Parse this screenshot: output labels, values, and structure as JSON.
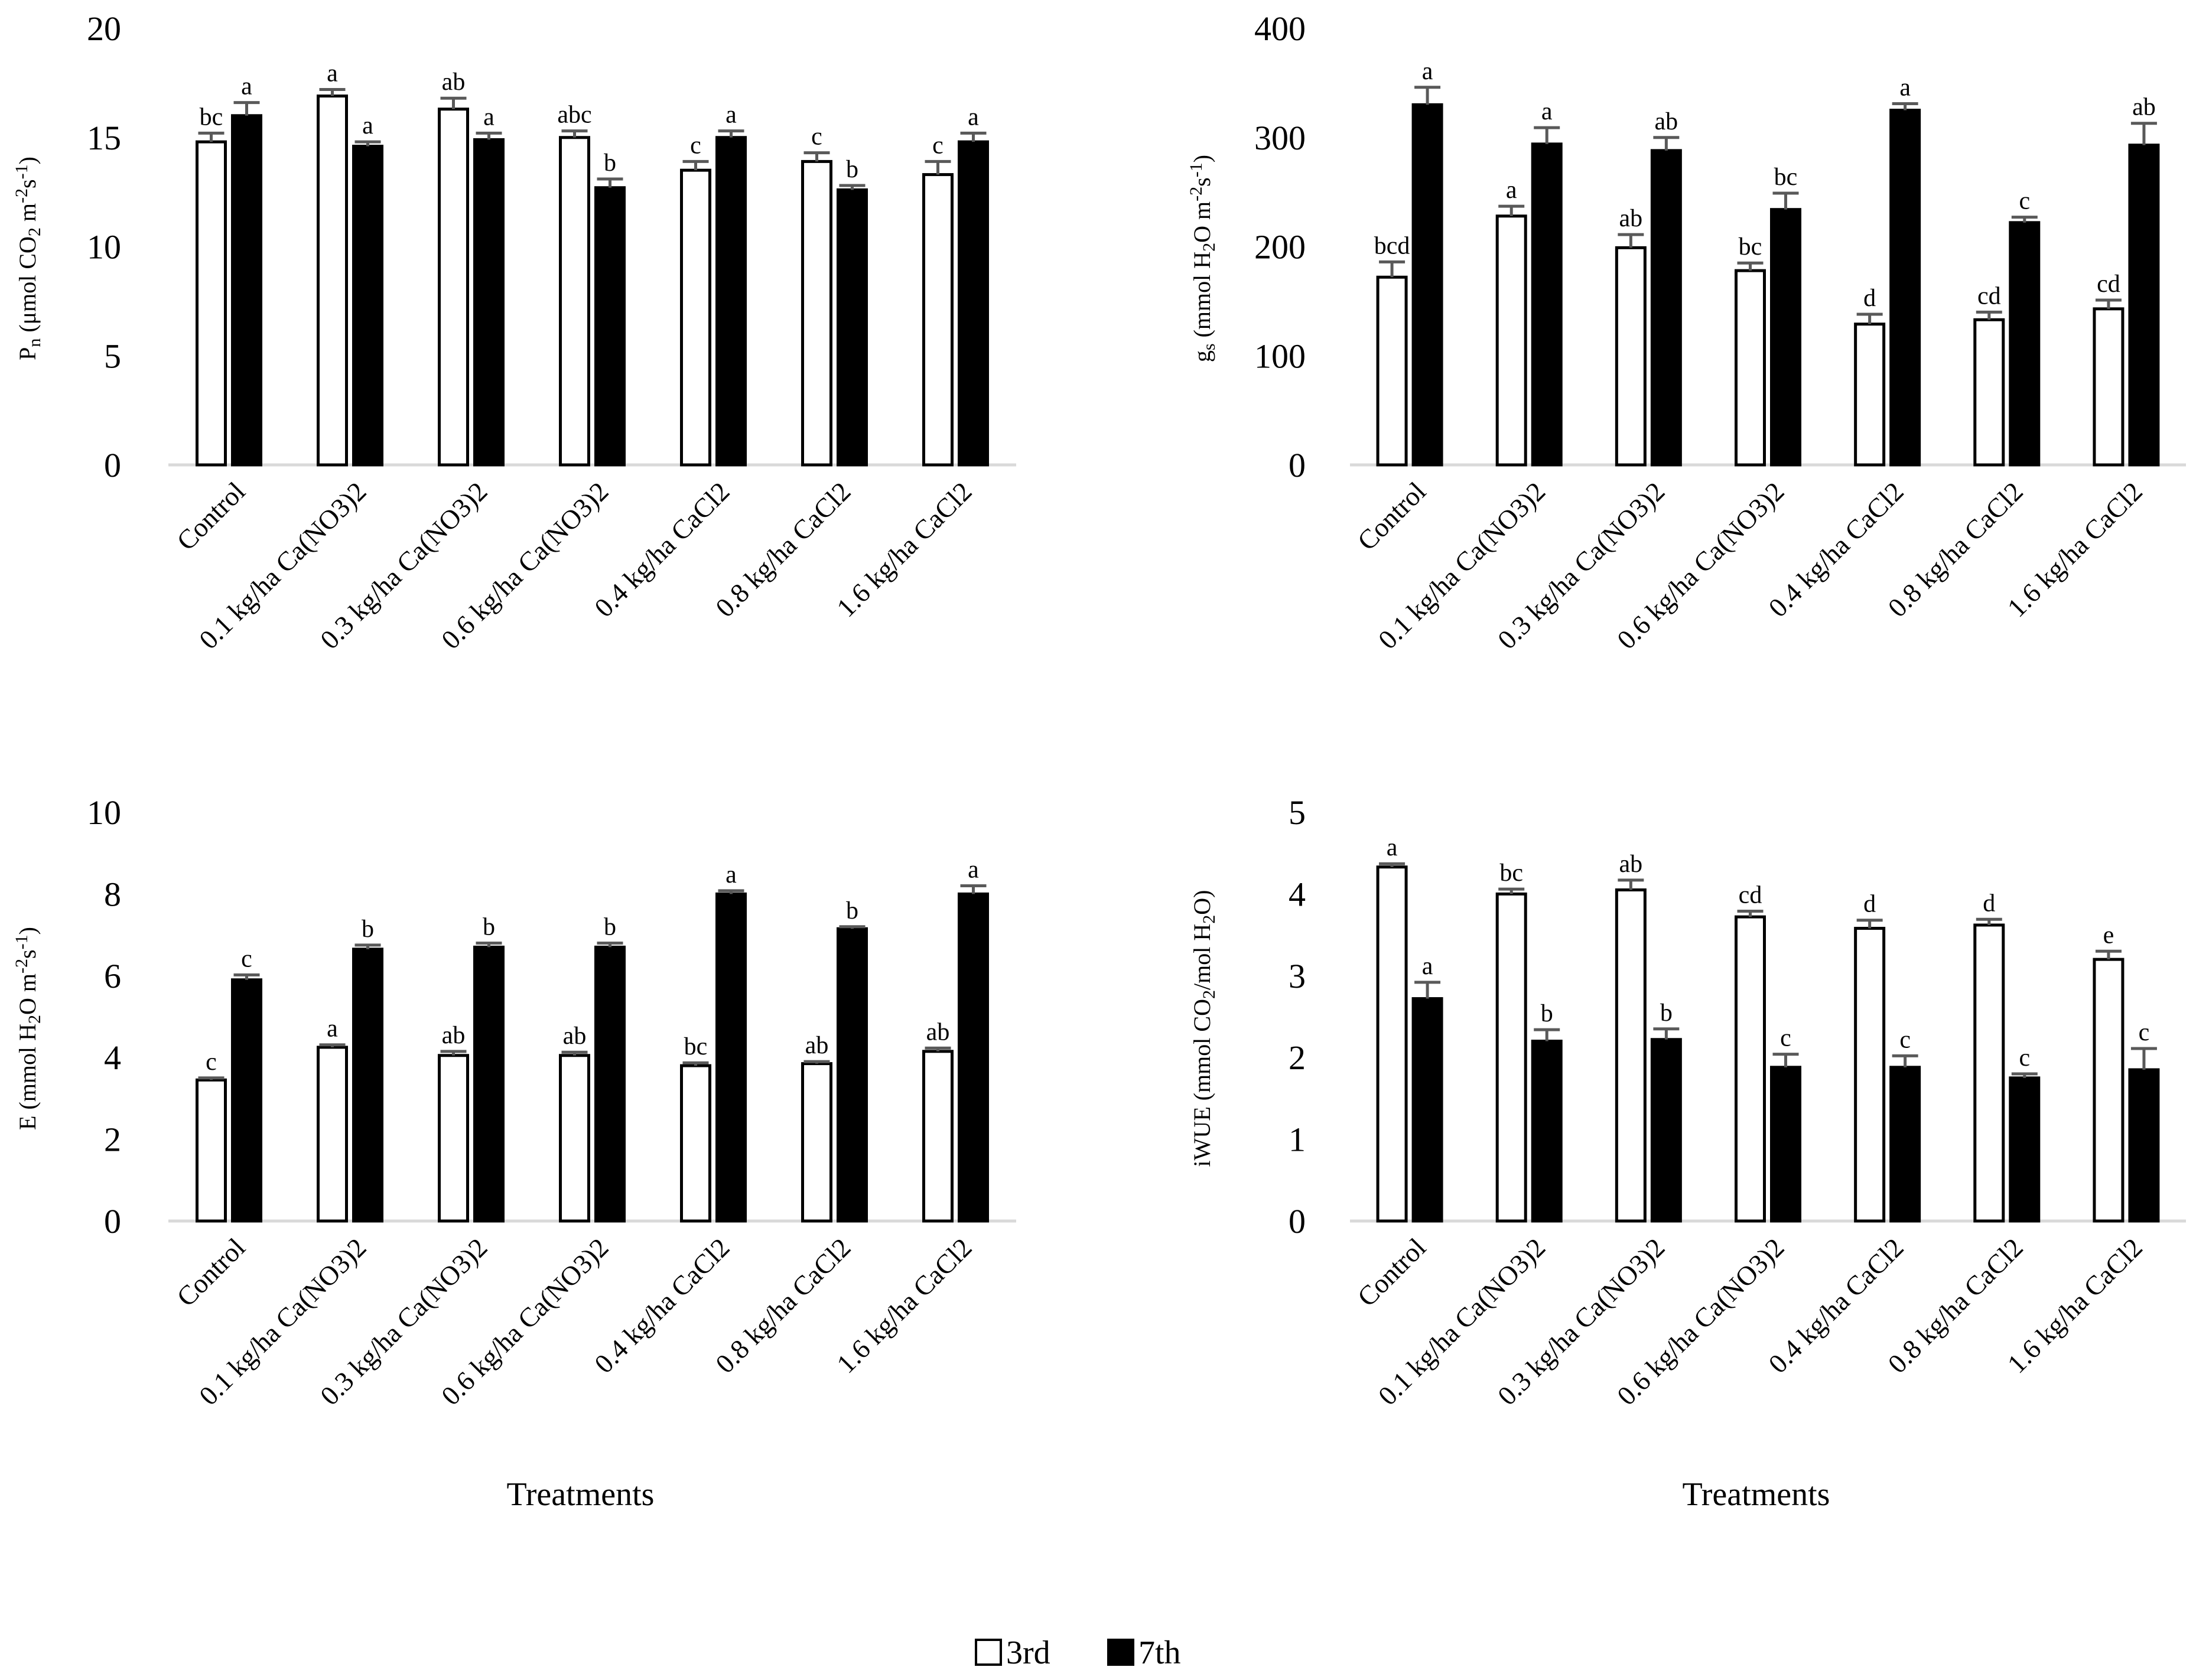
{
  "chart_data": [
    {
      "type": "bar",
      "panel": "Pn",
      "categories": [
        "Control",
        "0.1 kg/ha Ca(NO3)2",
        "0.3 kg/ha Ca(NO3)2",
        "0.6 kg/ha Ca(NO3)2",
        "0.4 kg/ha CaCl2",
        "0.8 kg/ha CaCl2",
        "1.6 kg/ha CaCl2"
      ],
      "ylabel": {
        "main": "P",
        "sub": "n",
        "text": " (μmol CO",
        "sub2": "2",
        "unit": " m",
        "sup": "-2",
        "unit2": "s",
        "sup2": "-1",
        "close": ")"
      },
      "xlabel": "",
      "ylim": [
        0,
        20
      ],
      "yticks": [
        "0",
        "5",
        "10",
        "15",
        "20"
      ],
      "series": [
        {
          "name": "3rd",
          "values": [
            14.8,
            16.9,
            16.3,
            15.0,
            13.5,
            13.9,
            13.3
          ],
          "errors": [
            0.4,
            0.3,
            0.5,
            0.3,
            0.4,
            0.4,
            0.6
          ],
          "letters": [
            "bc",
            "a",
            "ab",
            "abc",
            "c",
            "c",
            "c"
          ]
        },
        {
          "name": "7th",
          "values": [
            16.0,
            14.6,
            14.9,
            12.7,
            15.0,
            12.6,
            14.8
          ],
          "errors": [
            0.6,
            0.2,
            0.3,
            0.4,
            0.3,
            0.2,
            0.4
          ],
          "letters": [
            "a",
            "a",
            "a",
            "b",
            "a",
            "b",
            "a"
          ]
        }
      ]
    },
    {
      "type": "bar",
      "panel": "gs",
      "categories": [
        "Control",
        "0.1 kg/ha Ca(NO3)2",
        "0.3 kg/ha Ca(NO3)2",
        "0.6 kg/ha Ca(NO3)2",
        "0.4 kg/ha CaCl2",
        "0.8 kg/ha CaCl2",
        "1.6 kg/ha CaCl2"
      ],
      "ylabel": {
        "main": "g",
        "sub": "s",
        "text": " (mmol H",
        "sub2": "2",
        "unit": "O m",
        "sup": "-2",
        "unit2": "s",
        "sup2": "-1",
        "close": ")"
      },
      "xlabel": "",
      "ylim": [
        0,
        400
      ],
      "yticks": [
        "0",
        "100",
        "200",
        "300",
        "400"
      ],
      "series": [
        {
          "name": "3rd",
          "values": [
            172,
            228,
            199,
            178,
            129,
            133,
            143
          ],
          "errors": [
            14,
            9,
            12,
            7,
            9,
            7,
            8
          ],
          "letters": [
            "bcd",
            "a",
            "ab",
            "bc",
            "d",
            "cd",
            "cd"
          ]
        },
        {
          "name": "7th",
          "values": [
            330,
            294,
            288,
            234,
            325,
            222,
            293
          ],
          "errors": [
            16,
            15,
            12,
            15,
            6,
            5,
            20
          ],
          "letters": [
            "a",
            "a",
            "ab",
            "bc",
            "a",
            "c",
            "ab"
          ]
        }
      ]
    },
    {
      "type": "bar",
      "panel": "E",
      "categories": [
        "Control",
        "0.1 kg/ha Ca(NO3)2",
        "0.3 kg/ha Ca(NO3)2",
        "0.6 kg/ha Ca(NO3)2",
        "0.4 kg/ha CaCl2",
        "0.8 kg/ha CaCl2",
        "1.6 kg/ha CaCl2"
      ],
      "ylabel": {
        "main": "E",
        "sub": "",
        "text": " (mmol H",
        "sub2": "2",
        "unit": "O m",
        "sup": "-2",
        "unit2": "s",
        "sup2": "-1",
        "close": ")"
      },
      "xlabel": "Treatments",
      "ylim": [
        0,
        10
      ],
      "yticks": [
        "0",
        "2",
        "4",
        "6",
        "8",
        "10"
      ],
      "series": [
        {
          "name": "3rd",
          "values": [
            3.45,
            4.25,
            4.05,
            4.05,
            3.8,
            3.85,
            4.15
          ],
          "errors": [
            0.05,
            0.06,
            0.1,
            0.08,
            0.07,
            0.05,
            0.08
          ],
          "letters": [
            "c",
            "a",
            "ab",
            "ab",
            "bc",
            "ab",
            "ab"
          ]
        },
        {
          "name": "7th",
          "values": [
            5.9,
            6.65,
            6.7,
            6.7,
            8.0,
            7.15,
            8.0
          ],
          "errors": [
            0.12,
            0.1,
            0.1,
            0.1,
            0.08,
            0.05,
            0.2
          ],
          "letters": [
            "c",
            "b",
            "b",
            "b",
            "a",
            "b",
            "a"
          ]
        }
      ]
    },
    {
      "type": "bar",
      "panel": "iWUE",
      "categories": [
        "Control",
        "0.1 kg/ha Ca(NO3)2",
        "0.3 kg/ha Ca(NO3)2",
        "0.6 kg/ha Ca(NO3)2",
        "0.4 kg/ha CaCl2",
        "0.8 kg/ha CaCl2",
        "1.6 kg/ha CaCl2"
      ],
      "ylabel": {
        "main": "iWUE",
        "sub": "",
        "text": " (mmol CO",
        "sub2": "2",
        "unit": "/mol H",
        "sup": "",
        "unit2": "",
        "sup2": "",
        "sub3": "2",
        "close": "O)"
      },
      "xlabel": "Treatments",
      "ylim": [
        0,
        5
      ],
      "yticks": [
        "0",
        "1",
        "2",
        "3",
        "4",
        "5"
      ],
      "series": [
        {
          "name": "3rd",
          "values": [
            4.33,
            4.0,
            4.05,
            3.72,
            3.58,
            3.62,
            3.2
          ],
          "errors": [
            0.04,
            0.06,
            0.12,
            0.07,
            0.1,
            0.07,
            0.1
          ],
          "letters": [
            "a",
            "bc",
            "ab",
            "cd",
            "d",
            "d",
            "e"
          ]
        },
        {
          "name": "7th",
          "values": [
            2.72,
            2.2,
            2.22,
            1.88,
            1.88,
            1.75,
            1.85
          ],
          "errors": [
            0.2,
            0.14,
            0.13,
            0.16,
            0.14,
            0.05,
            0.26
          ],
          "letters": [
            "a",
            "b",
            "b",
            "c",
            "c",
            "c",
            "c"
          ]
        }
      ]
    }
  ],
  "legend": {
    "items": [
      {
        "label": "3rd",
        "color": "#ffffff"
      },
      {
        "label": "7th",
        "color": "#000000"
      }
    ]
  },
  "colors": {
    "bar_outline": "#000000",
    "axis": "#d9d9d9",
    "error_bar": "#595959"
  }
}
